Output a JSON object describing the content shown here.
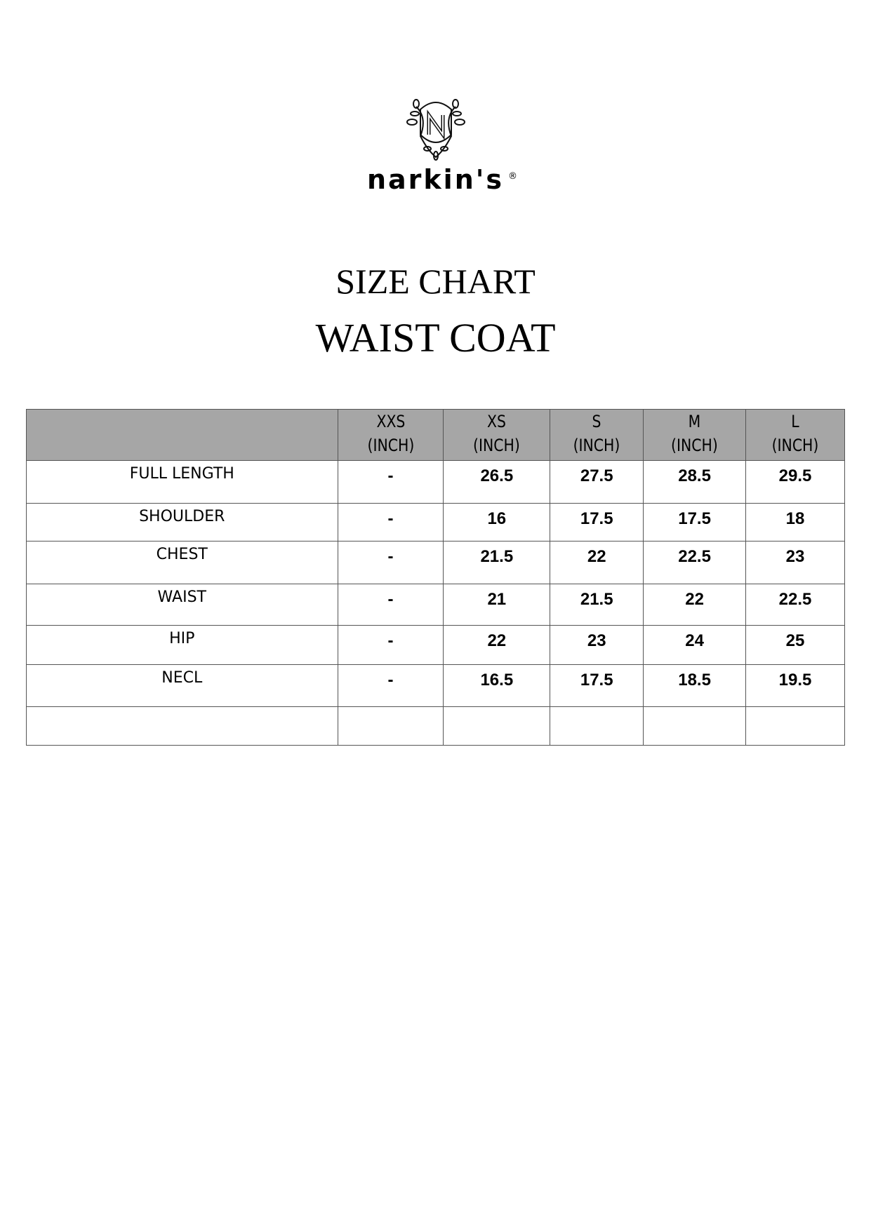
{
  "brand": {
    "name": "narkin's",
    "registered": "®",
    "emblem_letter": "N"
  },
  "titles": {
    "line1": "SIZE CHART",
    "line2": "WAIST COAT"
  },
  "table": {
    "columns": [
      {
        "size": "XXS",
        "unit": "(INCH)"
      },
      {
        "size": "XS",
        "unit": "(INCH)"
      },
      {
        "size": "S",
        "unit": "(INCH)"
      },
      {
        "size": "M",
        "unit": "(INCH)"
      },
      {
        "size": "L",
        "unit": "(INCH)"
      }
    ],
    "rows": [
      {
        "label": "FULL LENGTH",
        "values": [
          "-",
          "26.5",
          "27.5",
          "28.5",
          "29.5"
        ]
      },
      {
        "label": "SHOULDER",
        "values": [
          "-",
          "16",
          "17.5",
          "17.5",
          "18"
        ]
      },
      {
        "label": "CHEST",
        "values": [
          "-",
          "21.5",
          "22",
          "22.5",
          "23"
        ]
      },
      {
        "label": "WAIST",
        "values": [
          "-",
          "21",
          "21.5",
          "22",
          "22.5"
        ]
      },
      {
        "label": "HIP",
        "values": [
          "-",
          "22",
          "23",
          "24",
          "25"
        ]
      },
      {
        "label": "NECL",
        "values": [
          "-",
          "16.5",
          "17.5",
          "18.5",
          "19.5"
        ]
      }
    ],
    "header_color": "#a6a6a6"
  }
}
